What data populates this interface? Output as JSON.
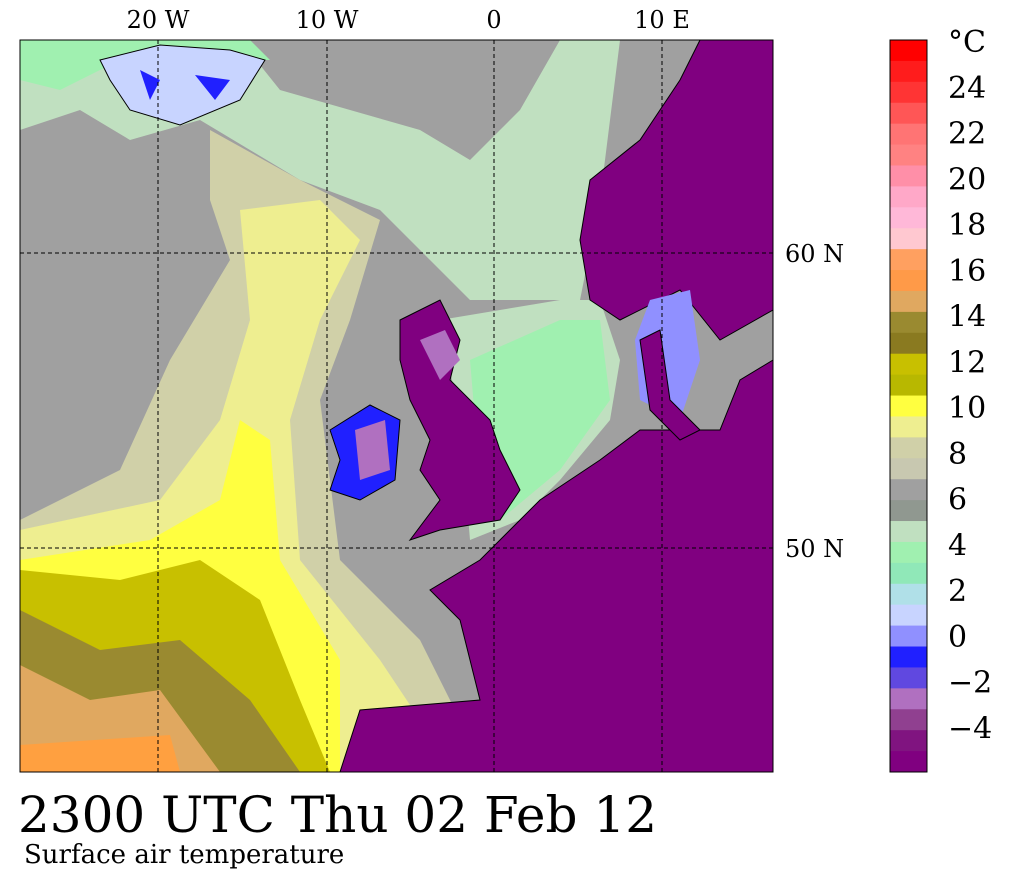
{
  "map": {
    "lon_labels": [
      "20 W",
      "10 W",
      "0",
      "10 E"
    ],
    "lat_labels": [
      "60 N",
      "50 N"
    ],
    "title": "2300 UTC Thu 02 Feb 12",
    "subtitle": "Surface air temperature",
    "colorbar": {
      "unit": "°C",
      "labels": [
        "24",
        "22",
        "20",
        "18",
        "16",
        "14",
        "12",
        "10",
        "8",
        "6",
        "4",
        "2",
        "0",
        "−2",
        "−4"
      ],
      "colors": [
        "#ff0000",
        "#ff1c1c",
        "#ff3434",
        "#ff5656",
        "#ff7474",
        "#ff8282",
        "#ff8fa8",
        "#ffa8c8",
        "#ffb8d8",
        "#ffc8d0",
        "#ffa060",
        "#ff9a48",
        "#e0a860",
        "#9a8a30",
        "#8a7a20",
        "#c8c000",
        "#b8b800",
        "#ffff40",
        "#eeee90",
        "#d0d0a8",
        "#c8c8b0",
        "#a0a0a0",
        "#909890",
        "#c0e0c0",
        "#a0f0b0",
        "#90e8b8",
        "#b0e0e8",
        "#c8d4ff",
        "#9090ff",
        "#2020ff",
        "#6048e0",
        "#b070c0",
        "#904090",
        "#801480",
        "#800080"
      ]
    }
  }
}
